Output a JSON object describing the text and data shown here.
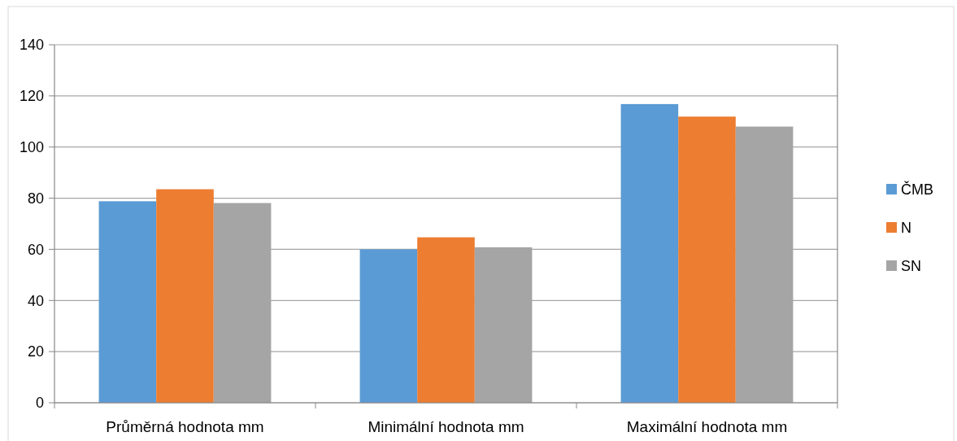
{
  "chart_data": {
    "type": "bar",
    "categories": [
      "Průměrná hodnota mm",
      "Minimální hodnota mm",
      "Maximální hodnota mm"
    ],
    "series": [
      {
        "name": "ČMB",
        "color": "#5b9bd5",
        "values": [
          78.8,
          60,
          116.8
        ]
      },
      {
        "name": "N",
        "color": "#ed7d31",
        "values": [
          83.5,
          64.7,
          111.9
        ]
      },
      {
        "name": "SN",
        "color": "#a5a5a5",
        "values": [
          78.1,
          60.8,
          108
        ]
      }
    ],
    "ylim": [
      0,
      140
    ],
    "yticks": [
      0,
      20,
      40,
      60,
      80,
      100,
      120,
      140
    ],
    "grid": "y",
    "legend": "right"
  }
}
